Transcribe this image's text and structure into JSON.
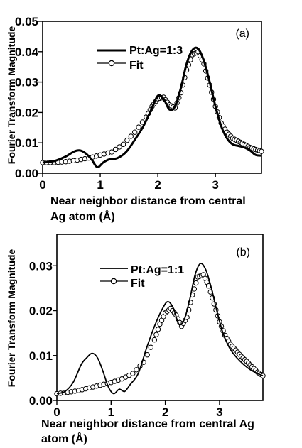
{
  "chart_data": [
    {
      "type": "line",
      "panel_label": "(a)",
      "xlabel": "Near neighbor distance from central Ag atom (Å)",
      "xlabel_lines": [
        "Near neighbor distance from central",
        "Ag atom (Å)"
      ],
      "ylabel": "Fourier Transform Magnitude",
      "xlim": [
        0,
        3.8
      ],
      "ylim": [
        0,
        0.05
      ],
      "xticks": [
        0,
        1,
        2,
        3
      ],
      "xtick_labels": [
        "0",
        "1",
        "2",
        "3"
      ],
      "yticks": [
        0,
        0.01,
        0.02,
        0.03,
        0.04,
        0.05
      ],
      "ytick_labels": [
        "0.00",
        "0.01",
        "0.02",
        "0.03",
        "0.04",
        "0.05"
      ],
      "legend_position": "top-center",
      "series": [
        {
          "name": "Pt:Ag=1:3",
          "style": "thick-line",
          "x": [
            0,
            0.2,
            0.4,
            0.55,
            0.65,
            0.75,
            0.85,
            0.95,
            1.05,
            1.15,
            1.3,
            1.45,
            1.6,
            1.75,
            1.9,
            2.0,
            2.1,
            2.2,
            2.3,
            2.4,
            2.5,
            2.6,
            2.7,
            2.8,
            2.9,
            3.0,
            3.1,
            3.2,
            3.3,
            3.4,
            3.5,
            3.6,
            3.7,
            3.8
          ],
          "y": [
            0.0035,
            0.004,
            0.0055,
            0.0072,
            0.0075,
            0.0065,
            0.0045,
            0.002,
            0.0035,
            0.0045,
            0.005,
            0.007,
            0.011,
            0.0155,
            0.0215,
            0.0255,
            0.0245,
            0.021,
            0.022,
            0.028,
            0.036,
            0.0405,
            0.041,
            0.037,
            0.03,
            0.022,
            0.0155,
            0.0115,
            0.0095,
            0.009,
            0.0085,
            0.0075,
            0.006,
            0.0058
          ]
        },
        {
          "name": "Fit",
          "style": "open-circles",
          "x": [
            0,
            0.2,
            0.4,
            0.6,
            0.8,
            1.0,
            1.2,
            1.4,
            1.6,
            1.8,
            1.9,
            2.0,
            2.1,
            2.2,
            2.3,
            2.4,
            2.5,
            2.6,
            2.7,
            2.8,
            2.9,
            3.0,
            3.1,
            3.2,
            3.3,
            3.4,
            3.5,
            3.6,
            3.7,
            3.8
          ],
          "y": [
            0.0035,
            0.0035,
            0.0038,
            0.0043,
            0.005,
            0.006,
            0.007,
            0.0095,
            0.0135,
            0.0185,
            0.022,
            0.0245,
            0.025,
            0.0225,
            0.0215,
            0.0265,
            0.034,
            0.039,
            0.04,
            0.036,
            0.029,
            0.022,
            0.0165,
            0.0135,
            0.0115,
            0.0105,
            0.0095,
            0.0085,
            0.0078,
            0.0072
          ]
        }
      ]
    },
    {
      "type": "line",
      "panel_label": "(b)",
      "xlabel": "Near neighbor distance from central Ag atom (Å)",
      "xlabel_lines": [
        "Near neighbor distance from central Ag",
        "atom (Å)"
      ],
      "ylabel": "Fourier Transform Magnitude",
      "xlim": [
        0,
        3.8
      ],
      "ylim": [
        0,
        0.037
      ],
      "xticks": [
        0,
        1,
        2,
        3
      ],
      "xtick_labels": [
        "0",
        "1",
        "2",
        "3"
      ],
      "yticks": [
        0,
        0.01,
        0.02,
        0.03
      ],
      "ytick_labels": [
        "0.00",
        "0.01",
        "0.02",
        "0.03"
      ],
      "legend_position": "top-center",
      "series": [
        {
          "name": "Pt:Ag=1:1",
          "style": "thick-line",
          "x": [
            0,
            0.15,
            0.3,
            0.45,
            0.55,
            0.65,
            0.75,
            0.85,
            0.95,
            1.05,
            1.15,
            1.25,
            1.35,
            1.5,
            1.65,
            1.8,
            1.95,
            2.05,
            2.15,
            2.25,
            2.35,
            2.45,
            2.55,
            2.65,
            2.75,
            2.85,
            2.95,
            3.05,
            3.15,
            3.25,
            3.4,
            3.55,
            3.7,
            3.8
          ],
          "y": [
            0.0015,
            0.002,
            0.004,
            0.008,
            0.0095,
            0.0105,
            0.0095,
            0.0065,
            0.003,
            0.0015,
            0.0025,
            0.002,
            0.0035,
            0.006,
            0.0115,
            0.0165,
            0.0205,
            0.022,
            0.0205,
            0.017,
            0.018,
            0.0225,
            0.028,
            0.0305,
            0.029,
            0.025,
            0.02,
            0.0155,
            0.0125,
            0.0105,
            0.0085,
            0.007,
            0.006,
            0.0055
          ]
        },
        {
          "name": "Fit",
          "style": "open-circles",
          "x": [
            0,
            0.2,
            0.4,
            0.6,
            0.8,
            1.0,
            1.2,
            1.4,
            1.6,
            1.8,
            1.9,
            2.0,
            2.1,
            2.2,
            2.3,
            2.4,
            2.5,
            2.6,
            2.7,
            2.8,
            2.9,
            3.0,
            3.1,
            3.2,
            3.3,
            3.4,
            3.5,
            3.6,
            3.7,
            3.8
          ],
          "y": [
            0.0015,
            0.0018,
            0.0022,
            0.0028,
            0.0034,
            0.004,
            0.0048,
            0.006,
            0.0085,
            0.0135,
            0.017,
            0.0195,
            0.0205,
            0.019,
            0.0165,
            0.0185,
            0.0235,
            0.0275,
            0.028,
            0.0255,
            0.0215,
            0.0175,
            0.0145,
            0.0125,
            0.0112,
            0.0098,
            0.0087,
            0.0075,
            0.0063,
            0.0055
          ]
        }
      ]
    }
  ]
}
